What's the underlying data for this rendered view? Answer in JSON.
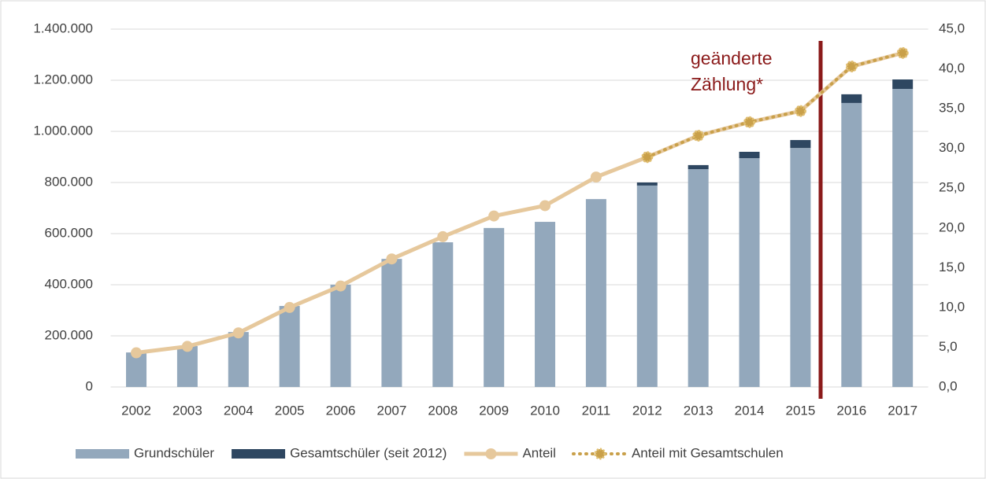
{
  "chart_data": {
    "type": "bar_line",
    "annotation": "geänderte Zählung*",
    "categories": [
      "2002",
      "2003",
      "2004",
      "2005",
      "2006",
      "2007",
      "2008",
      "2009",
      "2010",
      "2011",
      "2012",
      "2013",
      "2014",
      "2015",
      "2016",
      "2017"
    ],
    "series": [
      {
        "name": "Grundschüler",
        "color": "#93a8bc",
        "kind": "bar",
        "values": [
          135000,
          160000,
          215000,
          317000,
          400000,
          501000,
          566000,
          622000,
          646000,
          735000,
          788000,
          852000,
          895000,
          935000,
          1111000,
          1166000
        ]
      },
      {
        "name": "Gesamtschüler (seit 2012)",
        "color": "#2e4761",
        "kind": "bar",
        "values": [
          null,
          null,
          null,
          null,
          null,
          null,
          null,
          null,
          null,
          null,
          12000,
          16000,
          25000,
          31000,
          34000,
          37000
        ]
      },
      {
        "name": "Anteil",
        "color": "#e6c89c",
        "kind": "line",
        "axis": "y2",
        "values": [
          4.3,
          5.1,
          6.8,
          10.0,
          12.7,
          16.1,
          18.9,
          21.5,
          22.8,
          26.4,
          28.9,
          31.6,
          33.3,
          34.7,
          40.3,
          42.0
        ]
      },
      {
        "name": "Anteil mit Gesamtschulen",
        "color": "#c9a04a",
        "kind": "dotted",
        "axis": "y2",
        "values": [
          null,
          null,
          null,
          null,
          null,
          null,
          null,
          null,
          null,
          null,
          28.9,
          31.6,
          33.3,
          34.7,
          40.3,
          42.0
        ]
      }
    ],
    "ylim": [
      0,
      1400000
    ],
    "yticks": [
      0,
      {
        "value": 200000,
        "label": "200.000"
      },
      {
        "value": 400000,
        "label": "400.000"
      },
      {
        "value": 600000,
        "label": "600.000"
      },
      {
        "value": 800000,
        "label": "800.000"
      },
      {
        "value": 1000000,
        "label": "1.000.000"
      },
      {
        "value": 1200000,
        "label": "1.200.000"
      },
      {
        "value": 1400000,
        "label": "1.400.000"
      }
    ],
    "y2lim": [
      0,
      45
    ],
    "y2ticks": [
      {
        "value": 0,
        "label": "0,0"
      },
      {
        "value": 5,
        "label": "5,0"
      },
      {
        "value": 10,
        "label": "10,0"
      },
      {
        "value": 15,
        "label": "15,0"
      },
      {
        "value": 20,
        "label": "20,0"
      },
      {
        "value": 25,
        "label": "25,0"
      },
      {
        "value": 30,
        "label": "30,0"
      },
      {
        "value": 35,
        "label": "35,0"
      },
      {
        "value": 40,
        "label": "40,0"
      },
      {
        "value": 45,
        "label": "45,0"
      }
    ],
    "grid": true
  }
}
